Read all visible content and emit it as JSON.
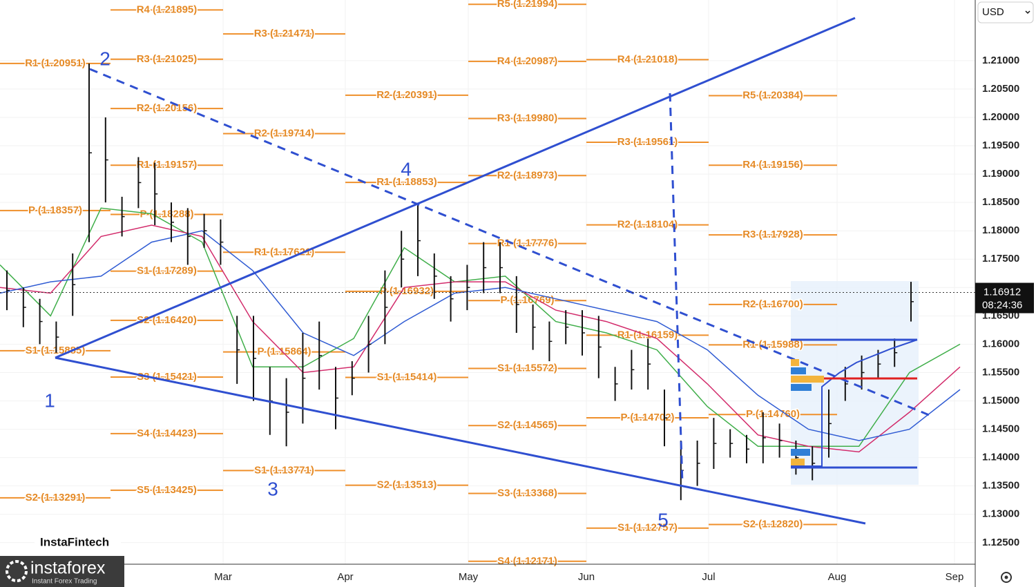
{
  "chart_data": {
    "type": "ohlc",
    "currency": "USD",
    "ylim": [
      1.1212,
      1.2207
    ],
    "yticks": [
      {
        "value": 1.125,
        "label": "1.12500"
      },
      {
        "value": 1.13,
        "label": "1.13000"
      },
      {
        "value": 1.135,
        "label": "1.13500"
      },
      {
        "value": 1.14,
        "label": "1.14000"
      },
      {
        "value": 1.145,
        "label": "1.14500"
      },
      {
        "value": 1.15,
        "label": "1.15000"
      },
      {
        "value": 1.155,
        "label": "1.15500"
      },
      {
        "value": 1.16,
        "label": "1.16000"
      },
      {
        "value": 1.165,
        "label": "1.16500"
      },
      {
        "value": 1.17,
        "label": "1.17000"
      },
      {
        "value": 1.175,
        "label": "1.17500"
      },
      {
        "value": 1.18,
        "label": "1.18000"
      },
      {
        "value": 1.185,
        "label": "1.18500"
      },
      {
        "value": 1.19,
        "label": "1.19000"
      },
      {
        "value": 1.195,
        "label": "1.19500"
      },
      {
        "value": 1.2,
        "label": "1.20000"
      },
      {
        "value": 1.205,
        "label": "1.20500"
      },
      {
        "value": 1.21,
        "label": "1.21000"
      }
    ],
    "months": [
      "Mar",
      "Apr",
      "May",
      "Jun",
      "Jul",
      "Aug",
      "Sep"
    ],
    "high": [
      1.173,
      1.17,
      1.168,
      1.164,
      1.176,
      1.2095,
      1.2,
      1.186,
      1.193,
      1.192,
      1.185,
      1.184,
      1.183,
      1.182,
      1.165,
      1.165,
      1.156,
      1.154,
      1.162,
      1.164,
      1.156,
      1.157,
      1.165,
      1.173,
      1.18,
      1.1845,
      1.176,
      1.172,
      1.174,
      1.178,
      1.178,
      1.172,
      1.167,
      1.164,
      1.166,
      1.166,
      1.165,
      1.156,
      1.159,
      1.161,
      1.152,
      1.143,
      1.143,
      1.147,
      1.145,
      1.144,
      1.148,
      1.146,
      1.143,
      1.142,
      1.152,
      1.156,
      1.158,
      1.159,
      1.161,
      1.171
    ],
    "low": [
      1.166,
      1.163,
      1.16,
      1.1585,
      1.165,
      1.178,
      1.185,
      1.179,
      1.184,
      1.181,
      1.178,
      1.174,
      1.177,
      1.174,
      1.153,
      1.15,
      1.144,
      1.142,
      1.146,
      1.152,
      1.145,
      1.151,
      1.155,
      1.16,
      1.17,
      1.172,
      1.168,
      1.164,
      1.166,
      1.169,
      1.169,
      1.162,
      1.159,
      1.157,
      1.16,
      1.158,
      1.154,
      1.15,
      1.152,
      1.152,
      1.142,
      1.1325,
      1.135,
      1.138,
      1.14,
      1.139,
      1.139,
      1.14,
      1.137,
      1.136,
      1.14,
      1.15,
      1.152,
      1.154,
      1.156,
      1.164
    ],
    "moving_averages": [
      {
        "color": "#3fae49",
        "values": [
          1.174,
          1.165,
          1.184,
          1.183,
          1.178,
          1.156,
          1.156,
          1.161,
          1.177,
          1.171,
          1.172,
          1.164,
          1.162,
          1.159,
          1.149,
          1.142,
          1.142,
          1.142,
          1.155,
          1.16
        ]
      },
      {
        "color": "#d22a6a",
        "values": [
          1.17,
          1.169,
          1.179,
          1.181,
          1.179,
          1.164,
          1.155,
          1.156,
          1.17,
          1.171,
          1.171,
          1.166,
          1.164,
          1.161,
          1.153,
          1.144,
          1.142,
          1.141,
          1.148,
          1.156
        ]
      },
      {
        "color": "#2f5bd3",
        "values": [
          1.169,
          1.171,
          1.172,
          1.178,
          1.18,
          1.173,
          1.162,
          1.158,
          1.164,
          1.169,
          1.17,
          1.168,
          1.166,
          1.164,
          1.159,
          1.151,
          1.145,
          1.143,
          1.145,
          1.152
        ]
      }
    ],
    "pivots": [
      {
        "levels": [
          {
            "label": "R1 (1.20951)",
            "value": 1.20951
          },
          {
            "label": "P (1.18357)",
            "value": 1.18357
          },
          {
            "label": "S1 (1.15885)",
            "value": 1.15885
          },
          {
            "label": "S2 (1.13291)",
            "value": 1.13291
          }
        ]
      },
      {
        "levels": [
          {
            "label": "R4 (1.21895)",
            "value": 1.21895
          },
          {
            "label": "R3 (1.21025)",
            "value": 1.21025
          },
          {
            "label": "R2 (1.20156)",
            "value": 1.20156
          },
          {
            "label": "R1 (1.19157)",
            "value": 1.19157
          },
          {
            "label": "P (1.18288)",
            "value": 1.18288
          },
          {
            "label": "S1 (1.17289)",
            "value": 1.17289
          },
          {
            "label": "S2 (1.16420)",
            "value": 1.1642
          },
          {
            "label": "S3 (1.15421)",
            "value": 1.15421
          },
          {
            "label": "S4 (1.14423)",
            "value": 1.14423
          },
          {
            "label": "S5 (1.13425)",
            "value": 1.13425
          }
        ]
      },
      {
        "levels": [
          {
            "label": "R3 (1.21471)",
            "value": 1.21471
          },
          {
            "label": "R2 (1.19714)",
            "value": 1.19714
          },
          {
            "label": "R1 (1.17621)",
            "value": 1.17621
          },
          {
            "label": "P (1.15864)",
            "value": 1.15864
          },
          {
            "label": "S1 (1.13771)",
            "value": 1.13771
          }
        ]
      },
      {
        "levels": [
          {
            "label": "R2 (1.20391)",
            "value": 1.20391
          },
          {
            "label": "R1 (1.18853)",
            "value": 1.18853
          },
          {
            "label": "P (1.16932)",
            "value": 1.16932
          },
          {
            "label": "S1 (1.15414)",
            "value": 1.15414
          },
          {
            "label": "S2 (1.13513)",
            "value": 1.13513
          }
        ]
      },
      {
        "levels": [
          {
            "label": "R5 (1.21994)",
            "value": 1.21994
          },
          {
            "label": "R4 (1.20987)",
            "value": 1.20987
          },
          {
            "label": "R3 (1.19980)",
            "value": 1.1998
          },
          {
            "label": "R2 (1.18973)",
            "value": 1.18973
          },
          {
            "label": "R1 (1.17776)",
            "value": 1.17776
          },
          {
            "label": "P (1.16769)",
            "value": 1.16769
          },
          {
            "label": "S1 (1.15572)",
            "value": 1.15572
          },
          {
            "label": "S2 (1.14565)",
            "value": 1.14565
          },
          {
            "label": "S3 (1.13368)",
            "value": 1.13368
          },
          {
            "label": "S4 (1.12171)",
            "value": 1.12171
          }
        ]
      },
      {
        "levels": [
          {
            "label": "R4 (1.21018)",
            "value": 1.21018
          },
          {
            "label": "R3 (1.19561)",
            "value": 1.19561
          },
          {
            "label": "R2 (1.18104)",
            "value": 1.18104
          },
          {
            "label": "R1 (1.16159)",
            "value": 1.16159
          },
          {
            "label": "P (1.14702)",
            "value": 1.14702
          },
          {
            "label": "S1 (1.12757)",
            "value": 1.12757
          }
        ]
      },
      {
        "levels": [
          {
            "label": "R5 (1.20384)",
            "value": 1.20384
          },
          {
            "label": "R4 (1.19156)",
            "value": 1.19156
          },
          {
            "label": "R3 (1.17928)",
            "value": 1.17928
          },
          {
            "label": "R2 (1.16700)",
            "value": 1.167
          },
          {
            "label": "R1 (1.15988)",
            "value": 1.15988
          },
          {
            "label": "P (1.14760)",
            "value": 1.1476
          },
          {
            "label": "S2 (1.12820)",
            "value": 1.1282
          }
        ]
      }
    ],
    "waves": [
      "1",
      "2",
      "3",
      "4",
      "5"
    ],
    "last_price": {
      "value": 1.16912,
      "label": "1.16912"
    },
    "countdown": "08:24:36",
    "brand": "InstaFintech",
    "logo": "instaforex",
    "logo_tagline": "Instant Forex Trading"
  }
}
